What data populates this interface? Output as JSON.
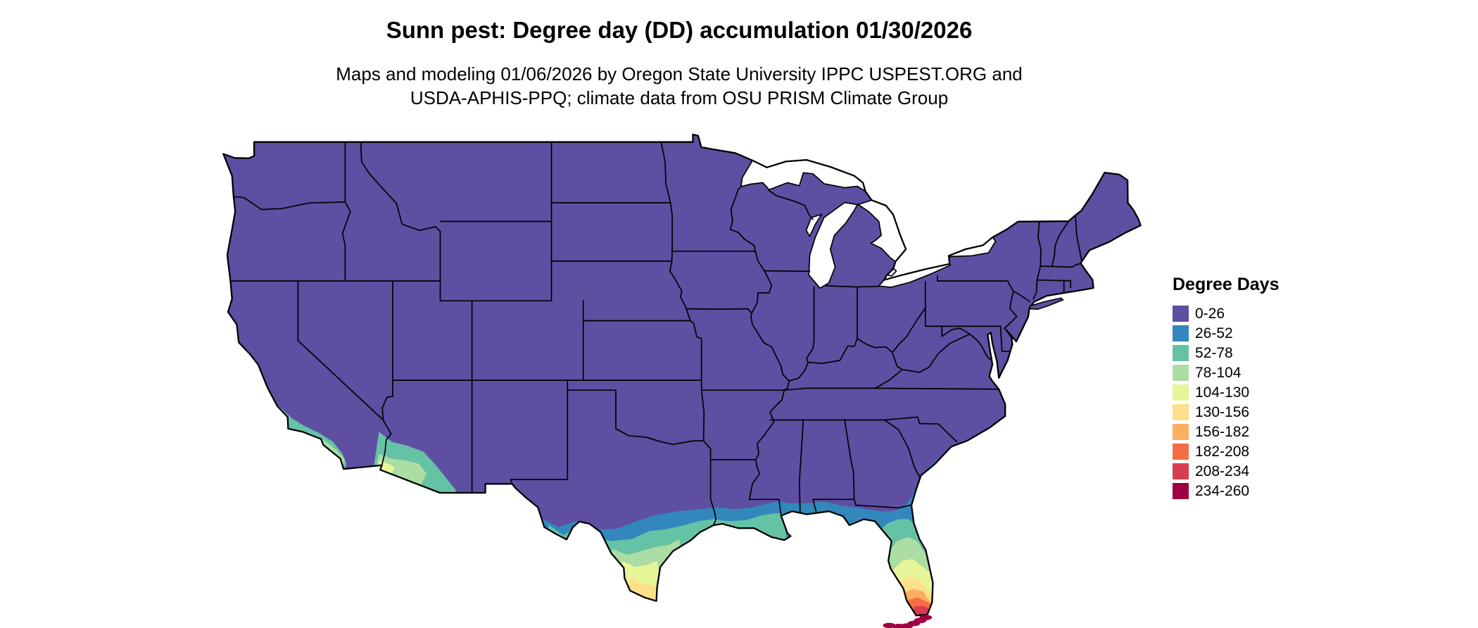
{
  "title": "Sunn pest: Degree day (DD) accumulation 01/30/2026",
  "subtitle_line1": "Maps and modeling 01/06/2026 by Oregon State University IPPC USPEST.ORG and",
  "subtitle_line2": "USDA-APHIS-PPQ; climate data from OSU PRISM Climate Group",
  "legend": {
    "title": "Degree Days",
    "bins": [
      {
        "label": "0-26",
        "color": "#5e4fa2"
      },
      {
        "label": "26-52",
        "color": "#3288bd"
      },
      {
        "label": "52-78",
        "color": "#66c2a5"
      },
      {
        "label": "78-104",
        "color": "#abdda4"
      },
      {
        "label": "104-130",
        "color": "#e6f598"
      },
      {
        "label": "130-156",
        "color": "#fee08b"
      },
      {
        "label": "156-182",
        "color": "#fdae61"
      },
      {
        "label": "182-208",
        "color": "#f46d43"
      },
      {
        "label": "208-234",
        "color": "#d53e4f"
      },
      {
        "label": "234-260",
        "color": "#9e0142"
      }
    ]
  },
  "map": {
    "type": "us-choropleth",
    "line_color": "#000000",
    "background": "#ffffff",
    "regions": [
      {
        "area": "Most of the contiguous US",
        "dd_bin": "0-26"
      },
      {
        "area": "Gulf Coast, central and south Texas, north Florida, southern Atlantic coast",
        "dd_bin": "26-78"
      },
      {
        "area": "South Texas and central Florida",
        "dd_bin": "78-130"
      },
      {
        "area": "Lower Rio Grande Valley and south-central Florida",
        "dd_bin": "104-156"
      },
      {
        "area": "Southern California coast and southwest Arizona",
        "dd_bin": "52-130"
      },
      {
        "area": "South Florida (Miami area)",
        "dd_bin": "156-234"
      },
      {
        "area": "Florida Keys",
        "dd_bin": "234-260"
      }
    ]
  }
}
